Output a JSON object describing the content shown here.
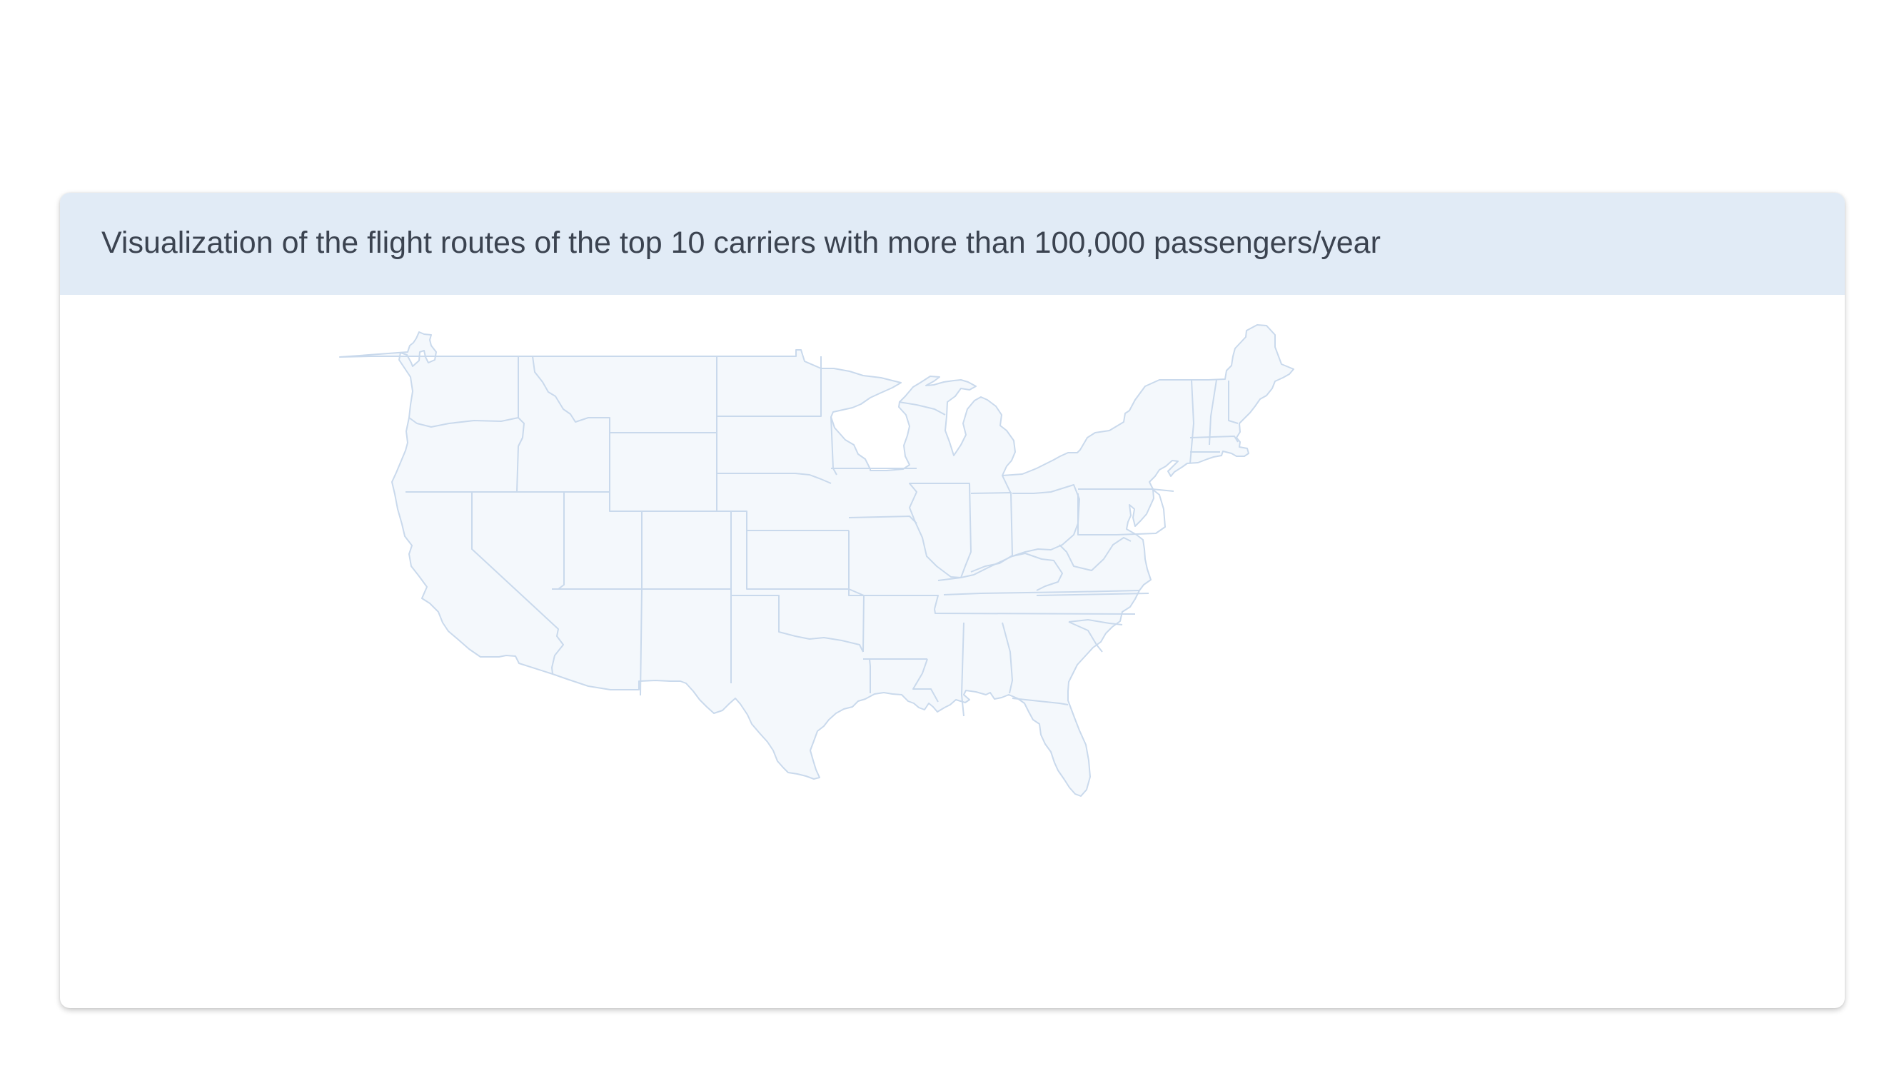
{
  "header": {
    "title": "Visualization of the flight routes of the top 10 carriers with more than 100,000 passengers/year"
  },
  "map": {
    "region": "United States (contiguous)",
    "fill_color": "#f4f8fc",
    "stroke_color": "#c9d9ec"
  },
  "colors": {
    "header_bg": "#e1ebf6",
    "title_text": "#3b4350",
    "page_bg": "#ffffff"
  }
}
